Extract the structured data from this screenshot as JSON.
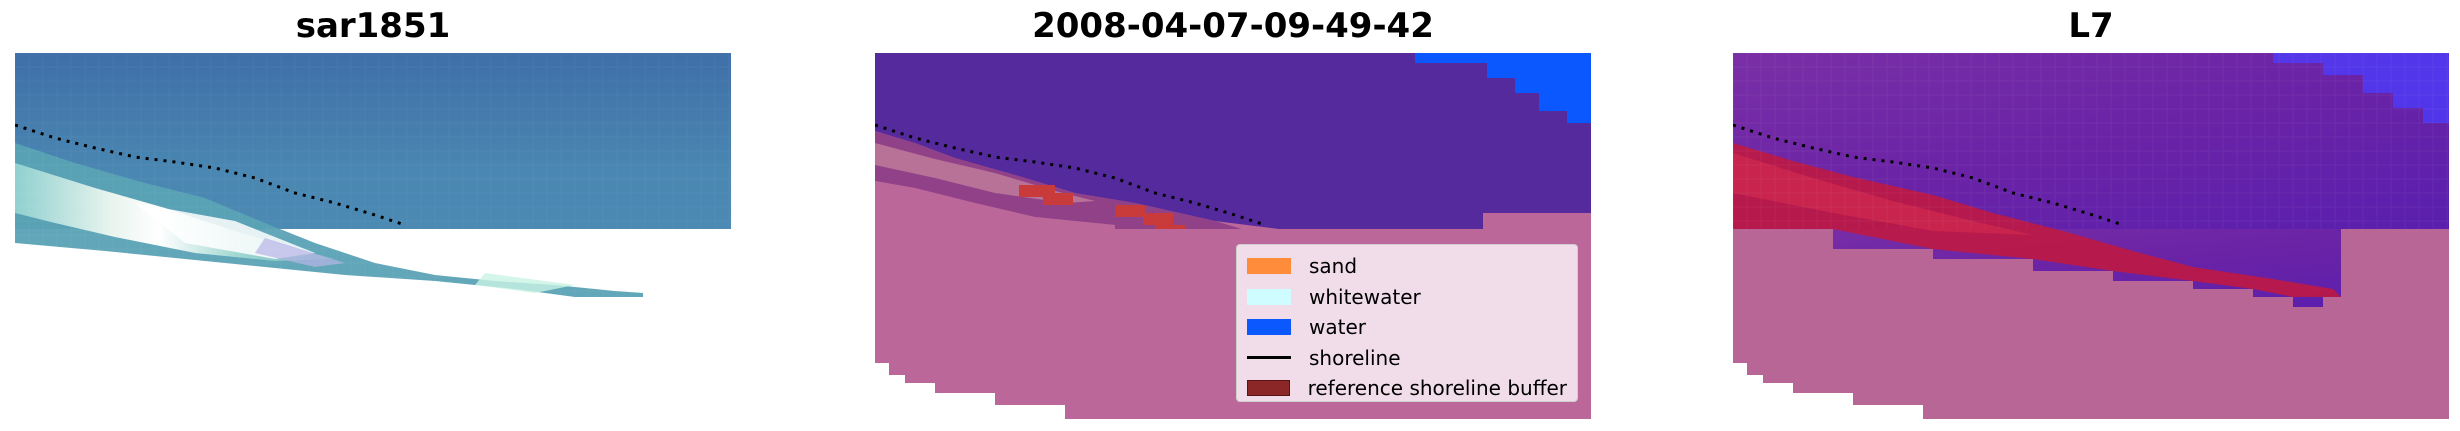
{
  "panels": [
    {
      "title": "sar1851"
    },
    {
      "title": "2008-04-07-09-49-42"
    },
    {
      "title": "L7"
    }
  ],
  "legend": {
    "items": [
      {
        "label": "sand",
        "color": "#ff8c3a",
        "kind": "patch"
      },
      {
        "label": "whitewater",
        "color": "#cffcff",
        "kind": "patch"
      },
      {
        "label": "water",
        "color": "#0b58ff",
        "kind": "patch"
      },
      {
        "label": "shoreline",
        "color": "#000000",
        "kind": "line"
      },
      {
        "label": "reference shoreline buffer",
        "color": "#8b2727",
        "kind": "patch"
      }
    ]
  },
  "colors": {
    "rgb_water": "#4a86b0",
    "class_water": "#542a9c",
    "class_buffer_overlay": "#bb6799",
    "index_land": "#b86696"
  }
}
